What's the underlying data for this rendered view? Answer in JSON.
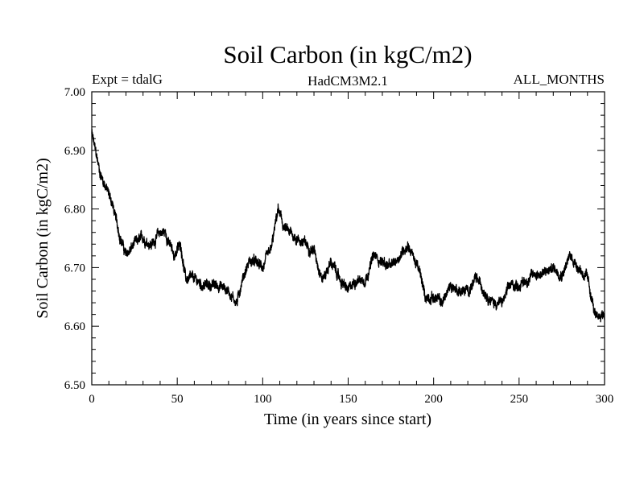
{
  "chart_data": {
    "type": "line",
    "title": "Soil Carbon (in kgC/m2)",
    "subtitle_left": "Expt = tdalG",
    "subtitle_center": "HadCM3M2.1",
    "subtitle_right": "ALL_MONTHS",
    "xlabel": "Time (in years since start)",
    "ylabel": "Soil Carbon (in kgC/m2)",
    "xlim": [
      0,
      300
    ],
    "ylim": [
      6.5,
      7.0
    ],
    "x_ticks": [
      0,
      50,
      100,
      150,
      200,
      250,
      300
    ],
    "x_tick_labels": [
      "0",
      "50",
      "100",
      "150",
      "200",
      "250",
      "300"
    ],
    "y_ticks": [
      6.5,
      6.6,
      6.7,
      6.8,
      6.9,
      7.0
    ],
    "y_tick_labels": [
      "6.50",
      "6.60",
      "6.70",
      "6.80",
      "6.90",
      "7.00"
    ],
    "grid": false,
    "series": [
      {
        "name": "Soil Carbon",
        "color": "#000000",
        "x": [
          0,
          2,
          5,
          8,
          12,
          15,
          18,
          20,
          25,
          30,
          35,
          40,
          43,
          48,
          52,
          55,
          60,
          65,
          70,
          75,
          80,
          85,
          88,
          92,
          95,
          100,
          105,
          109,
          112,
          115,
          120,
          125,
          130,
          135,
          140,
          145,
          150,
          155,
          160,
          165,
          170,
          175,
          180,
          185,
          188,
          192,
          195,
          200,
          205,
          210,
          215,
          220,
          225,
          230,
          235,
          240,
          245,
          250,
          255,
          260,
          265,
          270,
          275,
          280,
          285,
          290,
          293,
          295,
          298,
          300
        ],
        "y": [
          6.93,
          6.9,
          6.86,
          6.84,
          6.81,
          6.77,
          6.74,
          6.72,
          6.74,
          6.75,
          6.74,
          6.76,
          6.76,
          6.72,
          6.74,
          6.68,
          6.68,
          6.67,
          6.67,
          6.67,
          6.66,
          6.64,
          6.68,
          6.71,
          6.71,
          6.7,
          6.73,
          6.8,
          6.77,
          6.76,
          6.75,
          6.74,
          6.73,
          6.68,
          6.71,
          6.68,
          6.66,
          6.68,
          6.68,
          6.72,
          6.71,
          6.7,
          6.72,
          6.74,
          6.72,
          6.69,
          6.65,
          6.65,
          6.64,
          6.67,
          6.66,
          6.66,
          6.68,
          6.66,
          6.64,
          6.64,
          6.67,
          6.67,
          6.68,
          6.69,
          6.69,
          6.7,
          6.69,
          6.72,
          6.7,
          6.68,
          6.64,
          6.61,
          6.62,
          6.62
        ]
      }
    ]
  }
}
